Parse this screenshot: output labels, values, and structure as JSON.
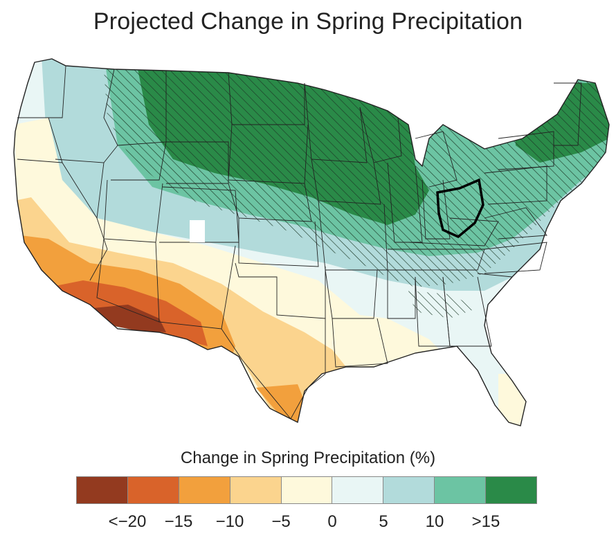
{
  "title": "Projected Change in Spring Precipitation",
  "legend": {
    "title": "Change in Spring Precipitation (%)",
    "colors": [
      "#933a1f",
      "#d9632a",
      "#f2a03d",
      "#fbd48e",
      "#fef9dc",
      "#e9f6f5",
      "#b2dbdb",
      "#6cc4a3",
      "#2a8a48"
    ],
    "tick_labels": [
      "<−20",
      "−15",
      "−10",
      "−5",
      "0",
      "5",
      "10",
      ">15"
    ]
  },
  "highlighted_state": "Ohio",
  "hatch_meaning": "",
  "map_palette": {
    "outline": "#222222",
    "hatch": "#1d3a28"
  }
}
